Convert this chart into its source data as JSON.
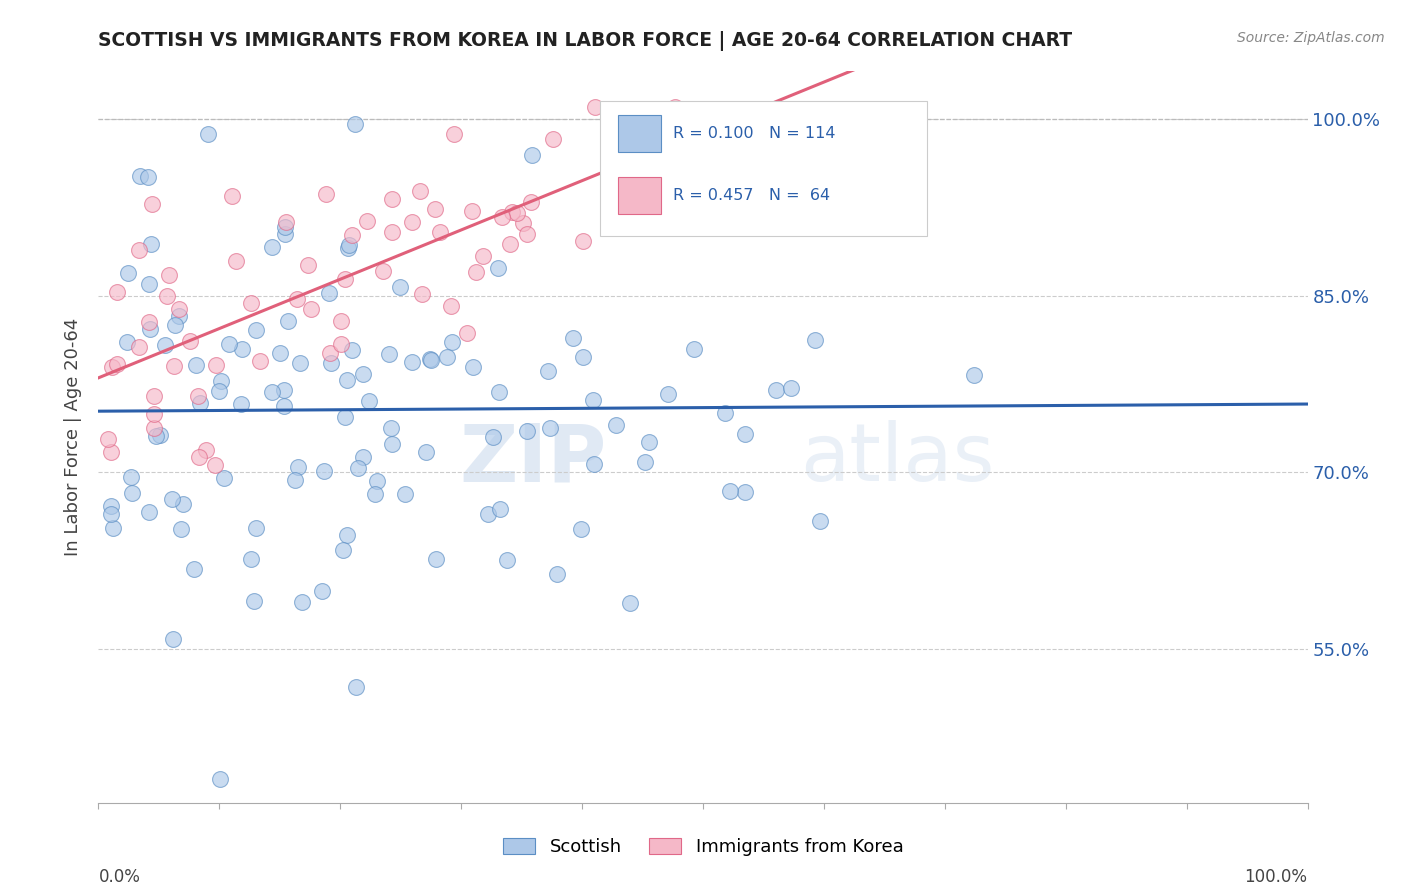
{
  "title": "SCOTTISH VS IMMIGRANTS FROM KOREA IN LABOR FORCE | AGE 20-64 CORRELATION CHART",
  "source": "Source: ZipAtlas.com",
  "ylabel": "In Labor Force | Age 20-64",
  "ytick_labels": [
    "100.0%",
    "85.0%",
    "70.0%",
    "55.0%"
  ],
  "ytick_values": [
    1.0,
    0.85,
    0.7,
    0.55
  ],
  "xlim": [
    0.0,
    1.0
  ],
  "ylim": [
    0.42,
    1.04
  ],
  "legend_blue_r": "R = 0.100",
  "legend_blue_n": "N = 114",
  "legend_pink_r": "R = 0.457",
  "legend_pink_n": "N =  64",
  "blue_color": "#adc8e8",
  "blue_edge": "#5b8ec4",
  "blue_line": "#2b5faa",
  "pink_color": "#f5b8c8",
  "pink_edge": "#e06888",
  "pink_line": "#e0607a",
  "label_scottish": "Scottish",
  "label_korea": "Immigrants from Korea",
  "watermark_zip": "ZIP",
  "watermark_atlas": "atlas"
}
